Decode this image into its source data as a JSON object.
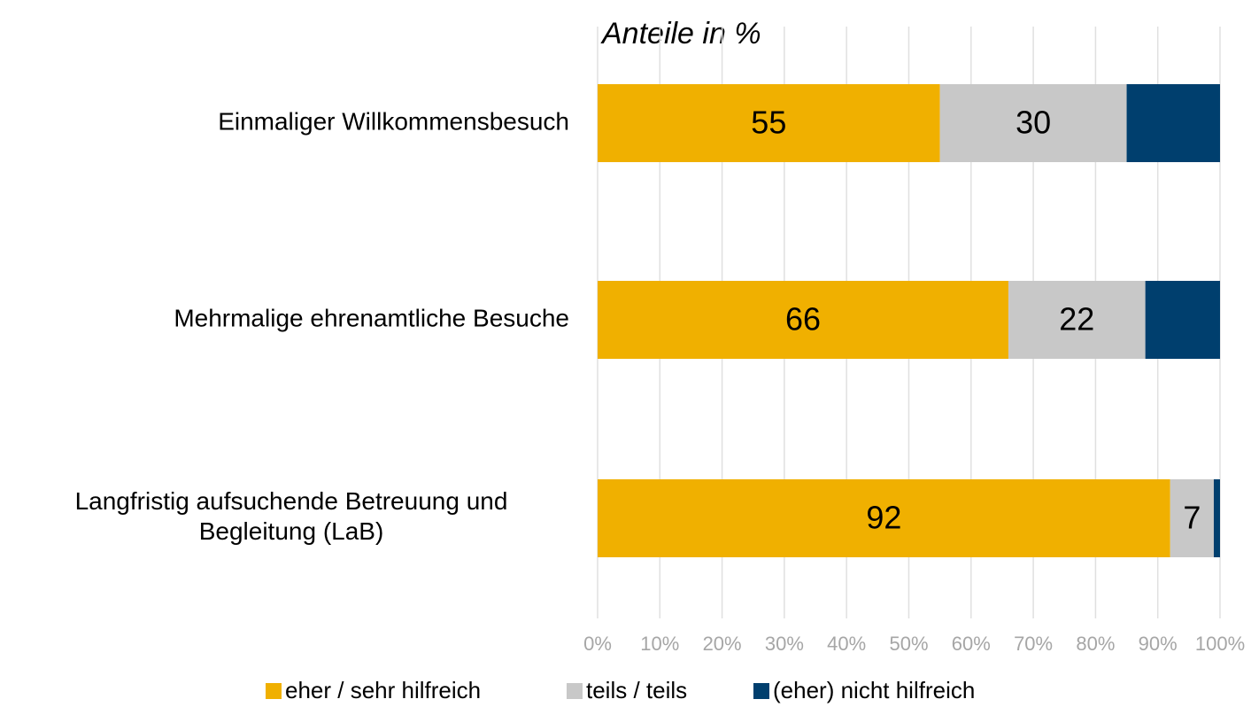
{
  "chart_data": {
    "type": "stacked_bar_horizontal",
    "title": "Anteile in %",
    "categories": [
      "Einmaliger Willkommensbesuch",
      "Mehrmalige ehrenamtliche Besuche",
      "Langfristig aufsuchende Betreuung und\nBegleitung (LaB)"
    ],
    "series": [
      {
        "name": "eher / sehr hilfreich",
        "color": "#f0b000",
        "values": [
          55,
          66,
          92
        ],
        "data_labels": true
      },
      {
        "name": "teils / teils",
        "color": "#c8c8c8",
        "values": [
          30,
          22,
          7
        ],
        "data_labels": true
      },
      {
        "name": "(eher) nicht hilfreich",
        "color": "#003f6e",
        "values": [
          15,
          12,
          1
        ],
        "data_labels": false
      }
    ],
    "xlim": [
      0,
      100
    ],
    "xticks": [
      {
        "value": 0,
        "label": "0%"
      },
      {
        "value": 10,
        "label": "10%"
      },
      {
        "value": 20,
        "label": "20%"
      },
      {
        "value": 30,
        "label": "30%"
      },
      {
        "value": 40,
        "label": "40%"
      },
      {
        "value": 50,
        "label": "50%"
      },
      {
        "value": 60,
        "label": "60%"
      },
      {
        "value": 70,
        "label": "70%"
      },
      {
        "value": 80,
        "label": "80%"
      },
      {
        "value": 90,
        "label": "90%"
      },
      {
        "value": 100,
        "label": "100%"
      }
    ],
    "grid": true,
    "legend": "bottom"
  }
}
